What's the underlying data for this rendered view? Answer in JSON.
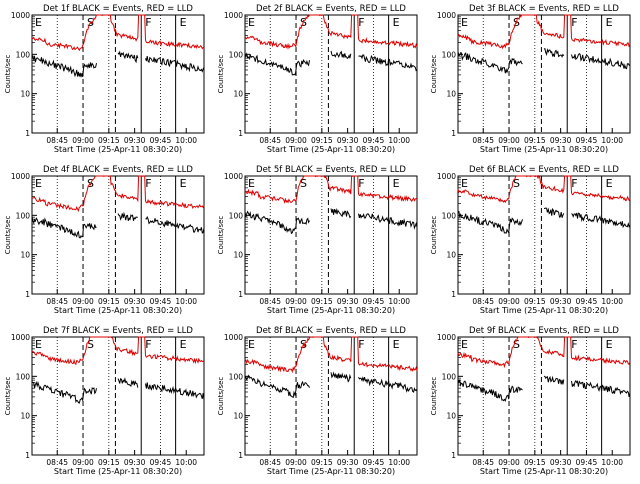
{
  "colors": {
    "events": "#000000",
    "lld": "#e00000",
    "axes": "#000000",
    "background": "#ffffff"
  },
  "common": {
    "xlabel": "Start Time (25-Apr-11 08:30:20)",
    "ylabel": "Counts/sec",
    "xticks": [
      "08:45",
      "09:00",
      "09:15",
      "09:30",
      "09:45",
      "10:00"
    ],
    "yticks": [
      "1",
      "10",
      "100",
      "1000"
    ],
    "region_labels": [
      "E",
      "S",
      "F",
      "E"
    ],
    "y_scale": "log",
    "ylim": [
      1,
      1000
    ],
    "xlim_minutes_after_start": [
      0,
      100
    ]
  },
  "chart_data": [
    {
      "type": "line",
      "title": "Det 1f BLACK = Events, RED = LLD",
      "series": [
        {
          "name": "BLACK = Events",
          "color": "#000000"
        },
        {
          "name": "RED = LLD",
          "color": "#e00000"
        }
      ]
    },
    {
      "type": "line",
      "title": "Det 2f BLACK = Events, RED = LLD",
      "series": [
        {
          "name": "BLACK = Events",
          "color": "#000000"
        },
        {
          "name": "RED = LLD",
          "color": "#e00000"
        }
      ]
    },
    {
      "type": "line",
      "title": "Det 3f BLACK = Events, RED = LLD",
      "series": [
        {
          "name": "BLACK = Events",
          "color": "#000000"
        },
        {
          "name": "RED = LLD",
          "color": "#e00000"
        }
      ]
    },
    {
      "type": "line",
      "title": "Det 4f BLACK = Events, RED = LLD",
      "series": [
        {
          "name": "BLACK = Events",
          "color": "#000000"
        },
        {
          "name": "RED = LLD",
          "color": "#e00000"
        }
      ]
    },
    {
      "type": "line",
      "title": "Det 5f BLACK = Events, RED = LLD",
      "series": [
        {
          "name": "BLACK = Events",
          "color": "#000000"
        },
        {
          "name": "RED = LLD",
          "color": "#e00000"
        }
      ]
    },
    {
      "type": "line",
      "title": "Det 6f BLACK = Events, RED = LLD",
      "series": [
        {
          "name": "BLACK = Events",
          "color": "#000000"
        },
        {
          "name": "RED = LLD",
          "color": "#e00000"
        }
      ]
    },
    {
      "type": "line",
      "title": "Det 7f BLACK = Events, RED = LLD",
      "series": [
        {
          "name": "BLACK = Events",
          "color": "#000000"
        },
        {
          "name": "RED = LLD",
          "color": "#e00000"
        }
      ]
    },
    {
      "type": "line",
      "title": "Det 8f BLACK = Events, RED = LLD",
      "series": [
        {
          "name": "BLACK = Events",
          "color": "#000000"
        },
        {
          "name": "RED = LLD",
          "color": "#e00000"
        }
      ]
    },
    {
      "type": "line",
      "title": "Det 9f BLACK = Events, RED = LLD",
      "series": [
        {
          "name": "BLACK = Events",
          "color": "#000000"
        },
        {
          "name": "RED = LLD",
          "color": "#e00000"
        }
      ]
    }
  ]
}
